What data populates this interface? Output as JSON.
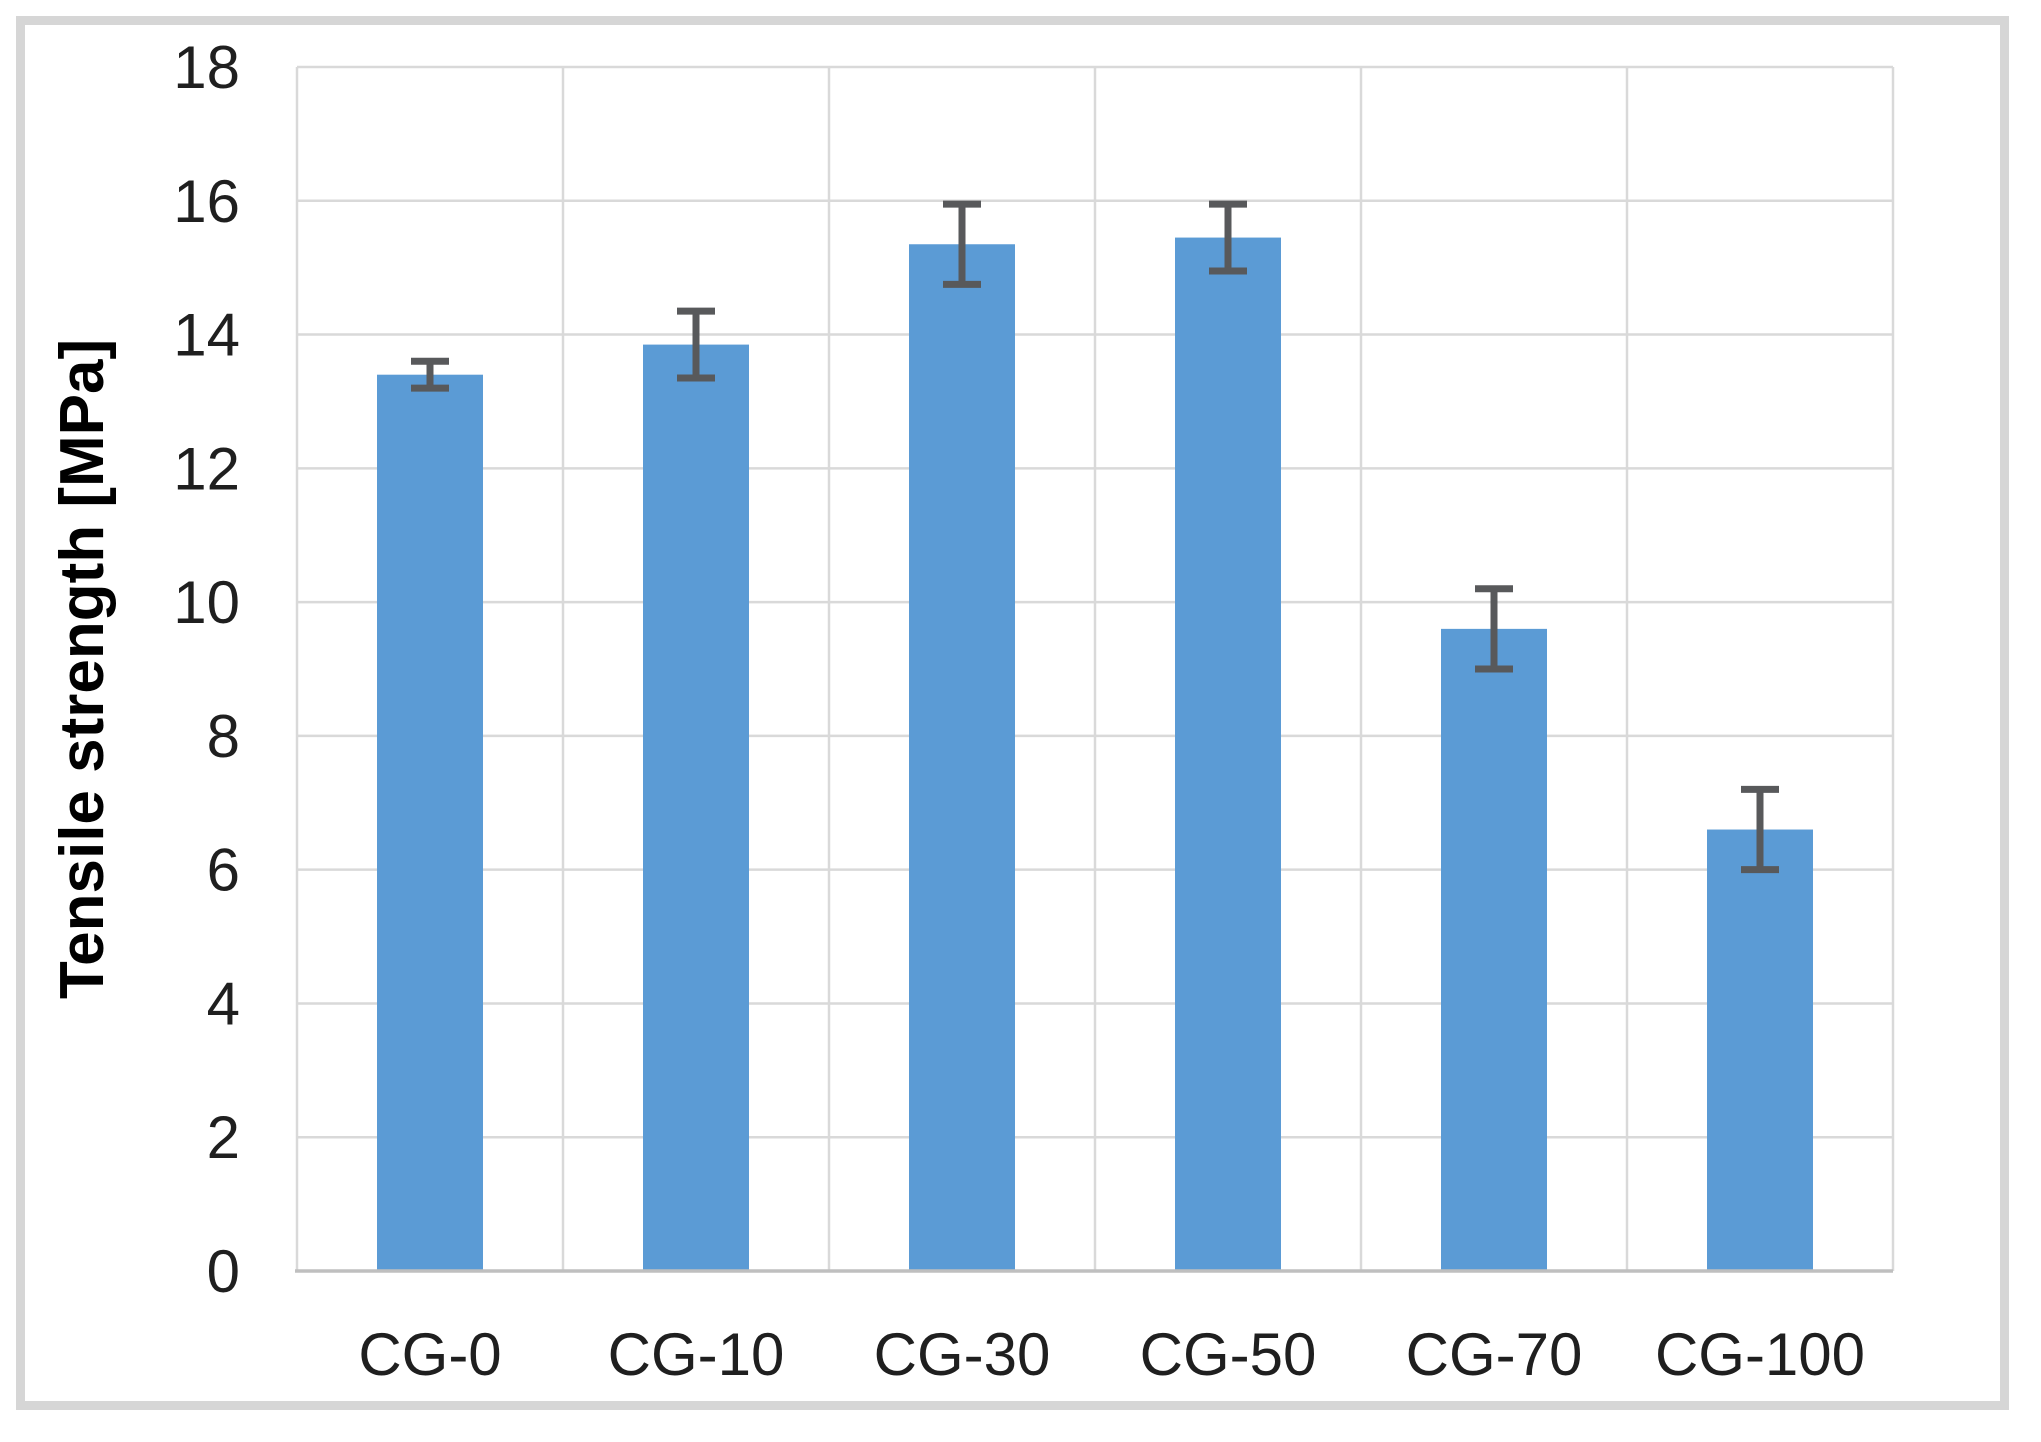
{
  "chart_data": {
    "type": "bar",
    "title": "",
    "xlabel": "",
    "ylabel": "Tensile strength [MPa]",
    "categories": [
      "CG-0",
      "CG-10",
      "CG-30",
      "CG-50",
      "CG-70",
      "CG-100"
    ],
    "series": [
      {
        "name": "Tensile strength",
        "values": [
          13.4,
          13.85,
          15.35,
          15.45,
          9.6,
          6.6
        ],
        "errors": [
          0.2,
          0.5,
          0.6,
          0.5,
          0.6,
          0.6
        ]
      }
    ],
    "ylim": [
      0,
      18
    ],
    "yticks": [
      0,
      2,
      4,
      6,
      8,
      10,
      12,
      14,
      16,
      18
    ],
    "grid": true,
    "legend": false,
    "colors": {
      "bar_fill": "#5B9BD5",
      "error_bar": "#58595B",
      "gridline": "#D9D9D9",
      "axis_line": "#BFBFBF",
      "tick_text": "#1F1F1F",
      "frame_border": "#D6D6D6",
      "background": "#FFFFFF"
    }
  }
}
